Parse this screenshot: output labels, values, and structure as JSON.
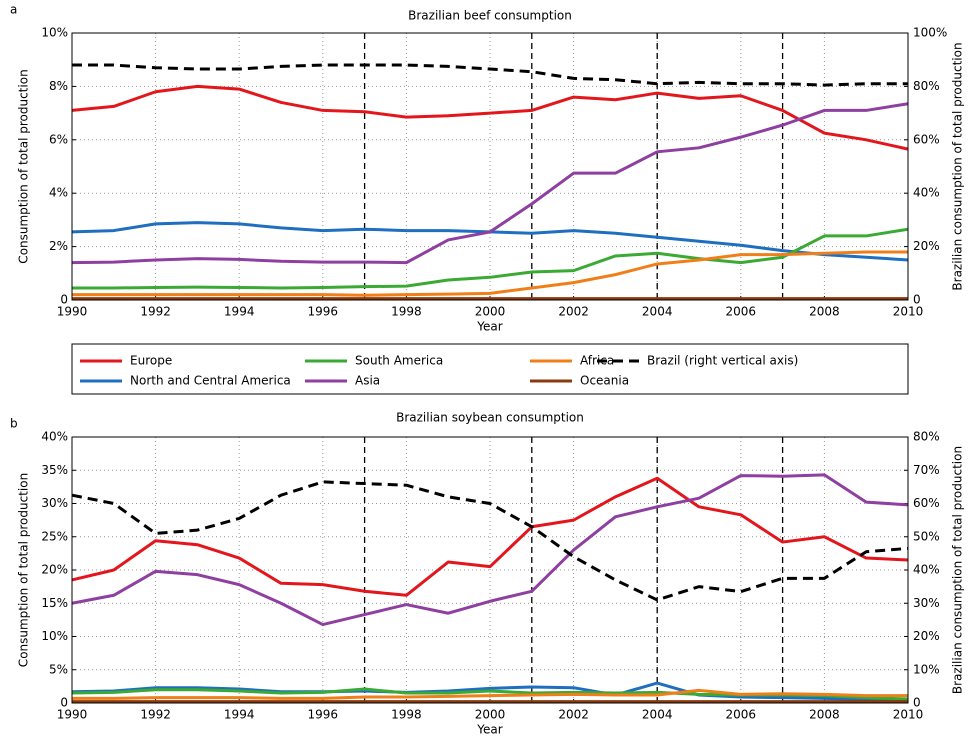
{
  "chart_data": [
    {
      "type": "line",
      "panel_label": "a",
      "title": "Brazilian beef consumption",
      "xlabel": "Year",
      "ylabel": "Consumption of total production",
      "y2label": "Brazilian consumption of total production",
      "x": [
        1990,
        1991,
        1992,
        1993,
        1994,
        1995,
        1996,
        1997,
        1998,
        1999,
        2000,
        2001,
        2002,
        2003,
        2004,
        2005,
        2006,
        2007,
        2008,
        2009,
        2010
      ],
      "xlim": [
        1990,
        2010
      ],
      "xticks": [
        1990,
        1992,
        1994,
        1996,
        1998,
        2000,
        2002,
        2004,
        2006,
        2008,
        2010
      ],
      "ylim": [
        0,
        10
      ],
      "yticks": [
        0,
        {
          "value": 2,
          "label": "2%"
        },
        {
          "value": 4,
          "label": "4%"
        },
        {
          "value": 6,
          "label": "6%"
        },
        {
          "value": 8,
          "label": "8%"
        },
        {
          "value": 10,
          "label": "10%"
        }
      ],
      "y2lim": [
        0,
        100
      ],
      "y2ticks": [
        0,
        {
          "value": 20,
          "label": "20%"
        },
        {
          "value": 40,
          "label": "40%"
        },
        {
          "value": 60,
          "label": "60%"
        },
        {
          "value": 80,
          "label": "80%"
        },
        {
          "value": 100,
          "label": "100%"
        }
      ],
      "grid": true,
      "vlines": [
        1997,
        2001,
        2004,
        2007
      ],
      "series": [
        {
          "name": "Europe",
          "color": "#e3161c",
          "values": [
            7.1,
            7.25,
            7.8,
            8.0,
            7.9,
            7.4,
            7.1,
            7.05,
            6.85,
            6.9,
            7.0,
            7.1,
            7.6,
            7.5,
            7.75,
            7.55,
            7.65,
            7.1,
            6.25,
            6.0,
            5.65
          ]
        },
        {
          "name": "North and Central America",
          "color": "#1f6fc0",
          "values": [
            2.55,
            2.6,
            2.85,
            2.9,
            2.85,
            2.7,
            2.6,
            2.65,
            2.6,
            2.6,
            2.55,
            2.5,
            2.6,
            2.5,
            2.35,
            2.2,
            2.05,
            1.85,
            1.7,
            1.6,
            1.5
          ]
        },
        {
          "name": "South America",
          "color": "#3aaa35",
          "values": [
            0.45,
            0.45,
            0.47,
            0.48,
            0.47,
            0.45,
            0.47,
            0.5,
            0.52,
            0.75,
            0.85,
            1.05,
            1.1,
            1.65,
            1.75,
            1.55,
            1.4,
            1.6,
            2.4,
            2.4,
            2.65
          ]
        },
        {
          "name": "Asia",
          "color": "#8e3fa0",
          "values": [
            1.4,
            1.42,
            1.5,
            1.55,
            1.52,
            1.45,
            1.42,
            1.42,
            1.4,
            2.25,
            2.55,
            3.6,
            4.75,
            4.75,
            5.55,
            5.7,
            6.1,
            6.55,
            7.1,
            7.1,
            7.35
          ]
        },
        {
          "name": "Africa",
          "color": "#f07f1a",
          "values": [
            0.2,
            0.2,
            0.2,
            0.2,
            0.2,
            0.2,
            0.2,
            0.18,
            0.2,
            0.22,
            0.25,
            0.45,
            0.65,
            0.95,
            1.35,
            1.5,
            1.7,
            1.7,
            1.75,
            1.8,
            1.8
          ]
        },
        {
          "name": "Oceania",
          "color": "#8b3a0e",
          "values": [
            0.05,
            0.05,
            0.05,
            0.05,
            0.05,
            0.05,
            0.05,
            0.05,
            0.05,
            0.05,
            0.05,
            0.05,
            0.05,
            0.05,
            0.05,
            0.05,
            0.05,
            0.05,
            0.05,
            0.05,
            0.05
          ]
        },
        {
          "name": "Brazil (right vertical axis)",
          "color": "#000000",
          "line_style": "dashed",
          "axis": "y2",
          "values": [
            88,
            88,
            87,
            86.5,
            86.5,
            87.5,
            88,
            88,
            88,
            87.5,
            86.5,
            85.5,
            83,
            82.5,
            81,
            81.5,
            81,
            81,
            80.5,
            81,
            81
          ]
        }
      ]
    },
    {
      "type": "line",
      "panel_label": "b",
      "title": "Brazilian soybean consumption",
      "xlabel": "Year",
      "ylabel": "Consumption of total production",
      "y2label": "Brazilian consumption of total production",
      "x": [
        1990,
        1991,
        1992,
        1993,
        1994,
        1995,
        1996,
        1997,
        1998,
        1999,
        2000,
        2001,
        2002,
        2003,
        2004,
        2005,
        2006,
        2007,
        2008,
        2009,
        2010
      ],
      "xlim": [
        1990,
        2010
      ],
      "xticks": [
        1990,
        1992,
        1994,
        1996,
        1998,
        2000,
        2002,
        2004,
        2006,
        2008,
        2010
      ],
      "ylim": [
        0,
        40
      ],
      "yticks": [
        0,
        {
          "value": 5,
          "label": "5%"
        },
        {
          "value": 10,
          "label": "10%"
        },
        {
          "value": 15,
          "label": "15%"
        },
        {
          "value": 20,
          "label": "20%"
        },
        {
          "value": 25,
          "label": "25%"
        },
        {
          "value": 30,
          "label": "30%"
        },
        {
          "value": 35,
          "label": "35%"
        },
        {
          "value": 40,
          "label": "40%"
        }
      ],
      "y2lim": [
        0,
        80
      ],
      "y2ticks": [
        0,
        {
          "value": 10,
          "label": "10%"
        },
        {
          "value": 20,
          "label": "20%"
        },
        {
          "value": 30,
          "label": "30%"
        },
        {
          "value": 40,
          "label": "40%"
        },
        {
          "value": 50,
          "label": "50%"
        },
        {
          "value": 60,
          "label": "60%"
        },
        {
          "value": 70,
          "label": "70%"
        },
        {
          "value": 80,
          "label": "80%"
        }
      ],
      "grid": true,
      "vlines": [
        1997,
        2001,
        2004,
        2007
      ],
      "series": [
        {
          "name": "Europe",
          "color": "#e3161c",
          "values": [
            18.5,
            20,
            24.4,
            23.8,
            21.8,
            18,
            17.8,
            16.8,
            16.2,
            21.2,
            20.5,
            26.5,
            27.5,
            31,
            33.8,
            29.5,
            28.3,
            24.2,
            25,
            21.8,
            21.5
          ]
        },
        {
          "name": "North and Central America",
          "color": "#1f6fc0",
          "values": [
            1.7,
            1.8,
            2.3,
            2.3,
            2.1,
            1.7,
            1.7,
            1.8,
            1.6,
            1.8,
            2.2,
            2.4,
            2.3,
            1.2,
            3,
            1.2,
            0.9,
            0.8,
            0.7,
            0.5,
            0.5
          ]
        },
        {
          "name": "South America",
          "color": "#3aaa35",
          "values": [
            1.5,
            1.6,
            2,
            2,
            1.8,
            1.5,
            1.6,
            2.1,
            1.5,
            1.5,
            1.8,
            1.5,
            1.6,
            1.5,
            1.6,
            1.3,
            1.2,
            1.2,
            1.1,
            0.8,
            0.6
          ]
        },
        {
          "name": "Asia",
          "color": "#8e3fa0",
          "values": [
            15,
            16.2,
            19.8,
            19.3,
            17.8,
            15,
            11.8,
            13.3,
            14.8,
            13.5,
            15.3,
            16.8,
            23,
            28,
            29.5,
            30.8,
            34.2,
            34.1,
            34.3,
            30.2,
            29.8
          ]
        },
        {
          "name": "Africa",
          "color": "#f07f1a",
          "values": [
            0.7,
            0.7,
            0.8,
            0.8,
            0.8,
            0.7,
            0.7,
            0.9,
            0.9,
            1,
            1.1,
            1.2,
            1.3,
            1.2,
            1.2,
            1.9,
            1.3,
            1.4,
            1.3,
            1.1,
            1.1
          ]
        },
        {
          "name": "Oceania",
          "color": "#8b3a0e",
          "values": [
            0.2,
            0.2,
            0.2,
            0.2,
            0.2,
            0.2,
            0.2,
            0.2,
            0.2,
            0.2,
            0.2,
            0.2,
            0.2,
            0.2,
            0.2,
            0.2,
            0.2,
            0.2,
            0.2,
            0.2,
            0.2
          ]
        },
        {
          "name": "Brazil (right vertical axis)",
          "color": "#000000",
          "line_style": "dashed",
          "axis": "y2",
          "values": [
            62.5,
            60,
            51,
            52,
            55.5,
            62.5,
            66.5,
            66,
            65.5,
            62,
            60,
            53,
            44,
            37,
            31,
            35,
            33.5,
            37.5,
            37.5,
            45.5,
            46.5
          ]
        }
      ]
    }
  ]
}
